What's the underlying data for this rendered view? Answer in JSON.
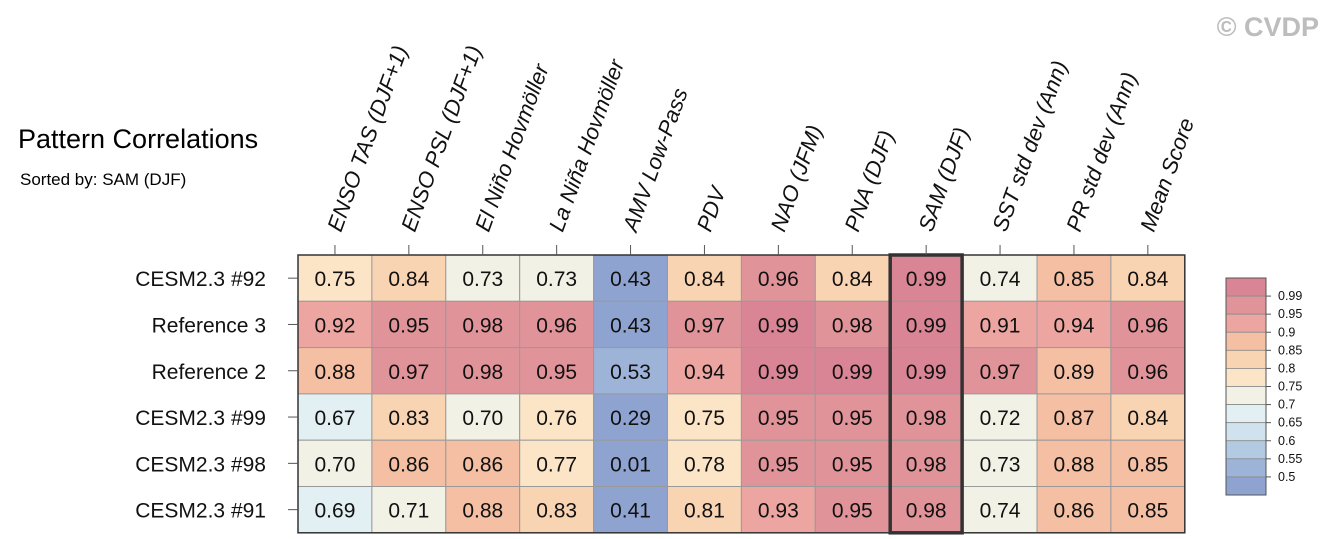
{
  "watermark": "© CVDP",
  "chart_data": {
    "type": "heatmap",
    "title": "Pattern Correlations",
    "subtitle": "Sorted by: SAM (DJF)",
    "columns": [
      "ENSO TAS (DJF+1)",
      "ENSO PSL (DJF+1)",
      "El Niño Hovmöller",
      "La Niña Hovmöller",
      "AMV Low-Pass",
      "PDV",
      "NAO (JFM)",
      "PNA (DJF)",
      "SAM (DJF)",
      "SST std dev (Ann)",
      "PR std dev (Ann)",
      "Mean Score"
    ],
    "rows": [
      "CESM2.3 #92",
      "Reference 3",
      "Reference 2",
      "CESM2.3 #99",
      "CESM2.3 #98",
      "CESM2.3 #91"
    ],
    "values": [
      [
        0.75,
        0.84,
        0.73,
        0.73,
        0.43,
        0.84,
        0.96,
        0.84,
        0.99,
        0.74,
        0.85,
        0.84
      ],
      [
        0.92,
        0.95,
        0.98,
        0.96,
        0.43,
        0.97,
        0.99,
        0.98,
        0.99,
        0.91,
        0.94,
        0.96
      ],
      [
        0.88,
        0.97,
        0.98,
        0.95,
        0.53,
        0.94,
        0.99,
        0.99,
        0.99,
        0.97,
        0.89,
        0.96
      ],
      [
        0.67,
        0.83,
        0.7,
        0.76,
        0.29,
        0.75,
        0.95,
        0.95,
        0.98,
        0.72,
        0.87,
        0.84
      ],
      [
        0.7,
        0.86,
        0.86,
        0.77,
        0.01,
        0.78,
        0.95,
        0.95,
        0.98,
        0.73,
        0.88,
        0.85
      ],
      [
        0.69,
        0.71,
        0.88,
        0.83,
        0.41,
        0.81,
        0.93,
        0.95,
        0.98,
        0.74,
        0.86,
        0.85
      ]
    ],
    "highlight_column": "SAM (DJF)",
    "colorbar": {
      "labels": [
        "0.99",
        "0.95",
        "0.9",
        "0.85",
        "0.8",
        "0.75",
        "0.7",
        "0.65",
        "0.6",
        "0.55",
        "0.5"
      ],
      "colors": [
        "#d98595",
        "#e0949a",
        "#eda5a1",
        "#f4bfa3",
        "#f9d4b3",
        "#fbe5c6",
        "#f2f1e6",
        "#e2eff3",
        "#cfe2ee",
        "#b3cbe2",
        "#9eb3d8",
        "#8fa3d1"
      ]
    }
  }
}
